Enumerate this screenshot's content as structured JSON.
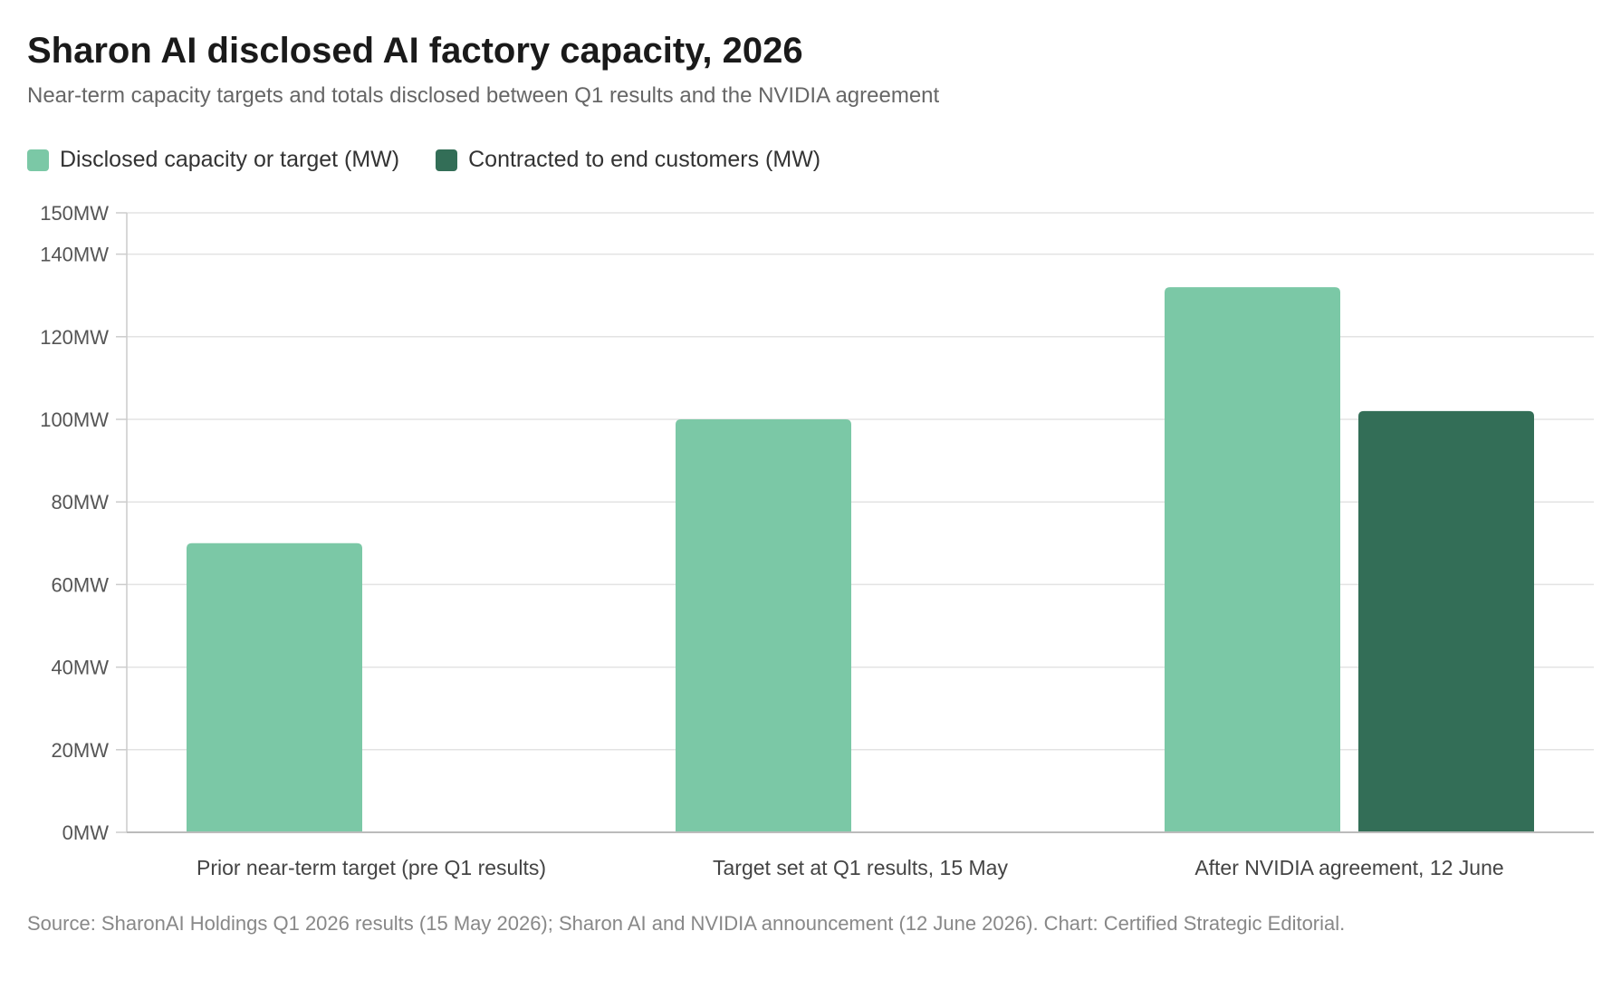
{
  "chart_data": {
    "type": "bar",
    "title": "Sharon AI disclosed AI factory capacity, 2026",
    "subtitle": "Near-term capacity targets and totals disclosed between Q1 results and the NVIDIA agreement",
    "categories": [
      "Prior near-term target (pre Q1 results)",
      "Target set at Q1 results, 15 May",
      "After NVIDIA agreement, 12 June"
    ],
    "series": [
      {
        "name": "Disclosed capacity or target (MW)",
        "color": "#7bc8a6",
        "values": [
          70,
          100,
          132
        ]
      },
      {
        "name": "Contracted to end customers (MW)",
        "color": "#336e57",
        "values": [
          null,
          null,
          102
        ]
      }
    ],
    "yticks": [
      "0MW",
      "20MW",
      "40MW",
      "60MW",
      "80MW",
      "100MW",
      "120MW",
      "140MW",
      "150MW"
    ],
    "ytick_values": [
      0,
      20,
      40,
      60,
      80,
      100,
      120,
      140,
      150
    ],
    "ylim": [
      0,
      150
    ],
    "grid": true,
    "legend_position": "top-left",
    "source": "Source: SharonAI Holdings Q1 2026 results (15 May 2026); Sharon AI and NVIDIA announcement (12 June 2026). Chart: Certified Strategic Editorial."
  }
}
